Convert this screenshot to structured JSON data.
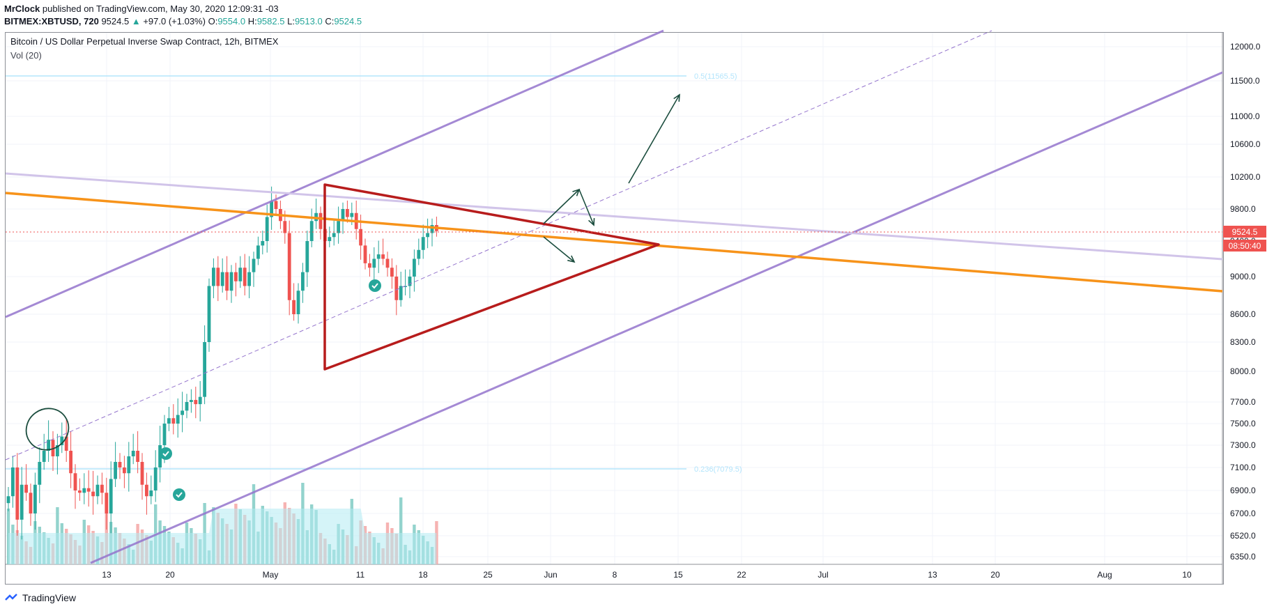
{
  "header": {
    "author": "MrClock",
    "published": "published on TradingView.com, May 30, 2020 12:09:31 -03",
    "symbol": "BITMEX:XBTUSD, 720",
    "last": "9524.5",
    "change": "+97.0 (+1.03%)",
    "o_label": "O:",
    "o_value": "9554.0",
    "h_label": "H:",
    "h_value": "9582.5",
    "l_label": "L:",
    "l_value": "9513.0",
    "c_label": "C:",
    "c_value": "9524.5"
  },
  "legend": {
    "title": "Bitcoin / US Dollar Perpetual Inverse Swap Contract, 12h, BITMEX",
    "volume": "Vol (20)"
  },
  "price_badge": "9524.5",
  "countdown_badge": "08:50:40",
  "fib_labels": [
    "0.5(11565.5)",
    "0.236(7079.5)"
  ],
  "footer": {
    "brand": "TradingView"
  },
  "colors": {
    "up": "#26a69a",
    "down": "#ef5350",
    "channel": "#9575cd",
    "orange": "#f7931a",
    "triangle": "#b71c1c",
    "arrows": "#1b4d3e",
    "badge": "#ef5350"
  },
  "chart_data": {
    "type": "candlestick",
    "price_axis": [
      12000,
      11500,
      11000,
      10600,
      10200,
      9800,
      9400,
      9000,
      8600,
      8300,
      8000,
      7700,
      7500,
      7300,
      7100,
      6900,
      6700,
      6520,
      6350
    ],
    "price_axis_labels": [
      "12000.0",
      "11500.0",
      "11000.0",
      "10600.0",
      "10200.0",
      "9800.0",
      "9400.0",
      "9000.0",
      "8600.0",
      "8300.0",
      "8000.0",
      "7700.0",
      "7500.0",
      "7300.0",
      "7100.0",
      "6900.0",
      "6700.0",
      "6520.0",
      "6350.0"
    ],
    "time_axis": [
      "13",
      "20",
      "May",
      "11",
      "18",
      "25",
      "Jun",
      "8",
      "15",
      "22",
      "Jul",
      "13",
      "20",
      "Aug",
      "10"
    ],
    "last_price": 9524.5,
    "indicators": [
      "Vol (20)"
    ],
    "candles_close": [
      6850,
      7100,
      6650,
      6950,
      6880,
      6700,
      6950,
      7150,
      7250,
      7350,
      7200,
      7300,
      7380,
      7250,
      7050,
      6900,
      6880,
      6920,
      6890,
      6850,
      6950,
      6880,
      6700,
      7000,
      7150,
      7100,
      7050,
      7200,
      7250,
      7150,
      6950,
      6850,
      6900,
      7100,
      7300,
      7500,
      7550,
      7500,
      7580,
      7620,
      7700,
      7720,
      7680,
      7750,
      8300,
      8900,
      9100,
      8900,
      9050,
      8850,
      9050,
      8950,
      9100,
      8900,
      9050,
      9200,
      9350,
      9400,
      9700,
      9900,
      9800,
      9650,
      9500,
      8750,
      8600,
      8850,
      9050,
      9400,
      9650,
      9750,
      9550,
      9400,
      9450,
      9500,
      9650,
      9800,
      9700,
      9750,
      9550,
      9350,
      9150,
      9100,
      9200,
      9250,
      9200,
      9100,
      9000,
      8750,
      8900,
      8900,
      9000,
      9200,
      9300,
      9450,
      9500,
      9600,
      9524.5
    ]
  }
}
